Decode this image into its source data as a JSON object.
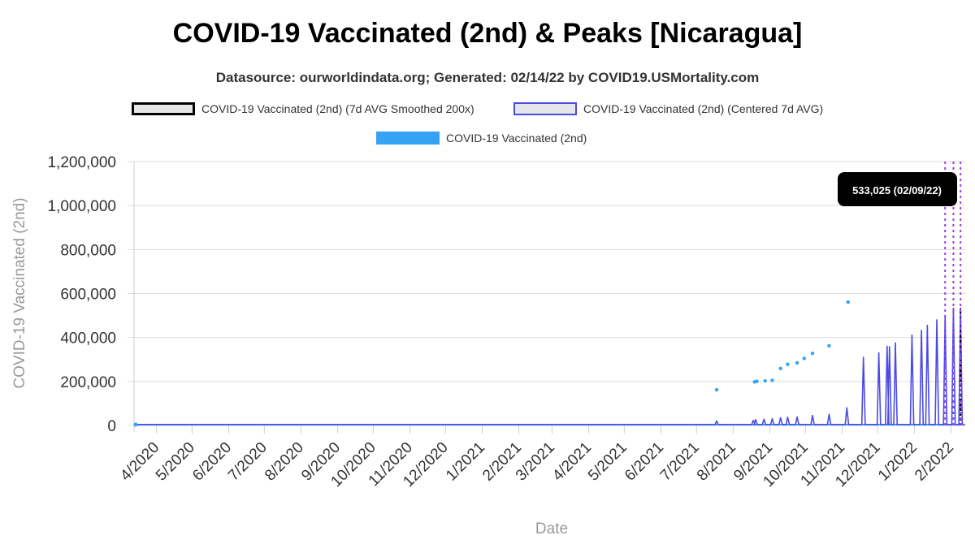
{
  "chart_data": {
    "type": "line",
    "title": "COVID-19 Vaccinated (2nd) & Peaks [Nicaragua]",
    "subtitle": "Datasource: ourworldindata.org; Generated: 02/14/22 by COVID19.USMortality.com",
    "xlabel": "Date",
    "ylabel": "COVID-19 Vaccinated (2nd)",
    "ylim": [
      0,
      1200000
    ],
    "y_ticks": [
      "1,200,000",
      "1,000,000",
      "800,000",
      "600,000",
      "400,000",
      "200,000",
      "0"
    ],
    "x_ticks": [
      "4/2020",
      "5/2020",
      "6/2020",
      "7/2020",
      "8/2020",
      "9/2020",
      "10/2020",
      "11/2020",
      "12/2020",
      "1/2021",
      "2/2021",
      "3/2021",
      "4/2021",
      "5/2021",
      "6/2021",
      "7/2021",
      "8/2021",
      "9/2021",
      "10/2021",
      "11/2021",
      "12/2021",
      "1/2022",
      "2/2022"
    ],
    "grid": true,
    "legend_position": "top",
    "legend": [
      {
        "label": "COVID-19 Vaccinated (2nd) (7d AVG Smoothed 200x)",
        "style": "smoothed",
        "color": "#000000"
      },
      {
        "label": "COVID-19 Vaccinated (2nd) (Centered 7d AVG)",
        "style": "centered",
        "color": "#4a4ae6"
      },
      {
        "label": "COVID-19 Vaccinated (2nd)",
        "style": "raw",
        "color": "#36a2f5"
      }
    ],
    "series": [
      {
        "name": "COVID-19 Vaccinated (2nd)",
        "kind": "points",
        "color": "#36a2f5",
        "points": [
          {
            "x": "2021-07-18",
            "y": 162000
          },
          {
            "x": "2021-08-19",
            "y": 198000
          },
          {
            "x": "2021-08-21",
            "y": 201000
          },
          {
            "x": "2021-08-28",
            "y": 203000
          },
          {
            "x": "2021-09-03",
            "y": 205000
          },
          {
            "x": "2021-09-10",
            "y": 259000
          },
          {
            "x": "2021-09-16",
            "y": 278000
          },
          {
            "x": "2021-09-24",
            "y": 285000
          },
          {
            "x": "2021-09-30",
            "y": 305000
          },
          {
            "x": "2021-10-07",
            "y": 328000
          },
          {
            "x": "2021-10-21",
            "y": 362000
          },
          {
            "x": "2021-11-06",
            "y": 561000
          }
        ]
      },
      {
        "name": "COVID-19 Vaccinated (2nd) (Centered 7d AVG)",
        "kind": "spikes",
        "color": "#4a4ae6",
        "points": [
          {
            "x": "2021-07-18",
            "y": 20000
          },
          {
            "x": "2021-08-18",
            "y": 23000
          },
          {
            "x": "2021-08-20",
            "y": 26000
          },
          {
            "x": "2021-08-27",
            "y": 28000
          },
          {
            "x": "2021-09-03",
            "y": 30000
          },
          {
            "x": "2021-09-10",
            "y": 35000
          },
          {
            "x": "2021-09-16",
            "y": 37000
          },
          {
            "x": "2021-09-24",
            "y": 38000
          },
          {
            "x": "2021-10-07",
            "y": 45000
          },
          {
            "x": "2021-10-21",
            "y": 50000
          },
          {
            "x": "2021-11-05",
            "y": 80000
          },
          {
            "x": "2021-11-19",
            "y": 310000
          },
          {
            "x": "2021-12-02",
            "y": 330000
          },
          {
            "x": "2021-12-09",
            "y": 360000
          },
          {
            "x": "2021-12-11",
            "y": 358000
          },
          {
            "x": "2021-12-16",
            "y": 375000
          },
          {
            "x": "2021-12-30",
            "y": 410000
          },
          {
            "x": "2022-01-07",
            "y": 432000
          },
          {
            "x": "2022-01-12",
            "y": 455000
          },
          {
            "x": "2022-01-20",
            "y": 480000
          },
          {
            "x": "2022-01-27",
            "y": 500000
          },
          {
            "x": "2022-02-03",
            "y": 533000
          },
          {
            "x": "2022-02-09",
            "y": 533025
          }
        ]
      }
    ],
    "peaks": [
      "2022-01-27",
      "2022-02-03",
      "2022-02-09"
    ],
    "annotation": {
      "text": "533,025 (02/09/22)",
      "x": "2022-02-09",
      "y": 533025
    }
  }
}
